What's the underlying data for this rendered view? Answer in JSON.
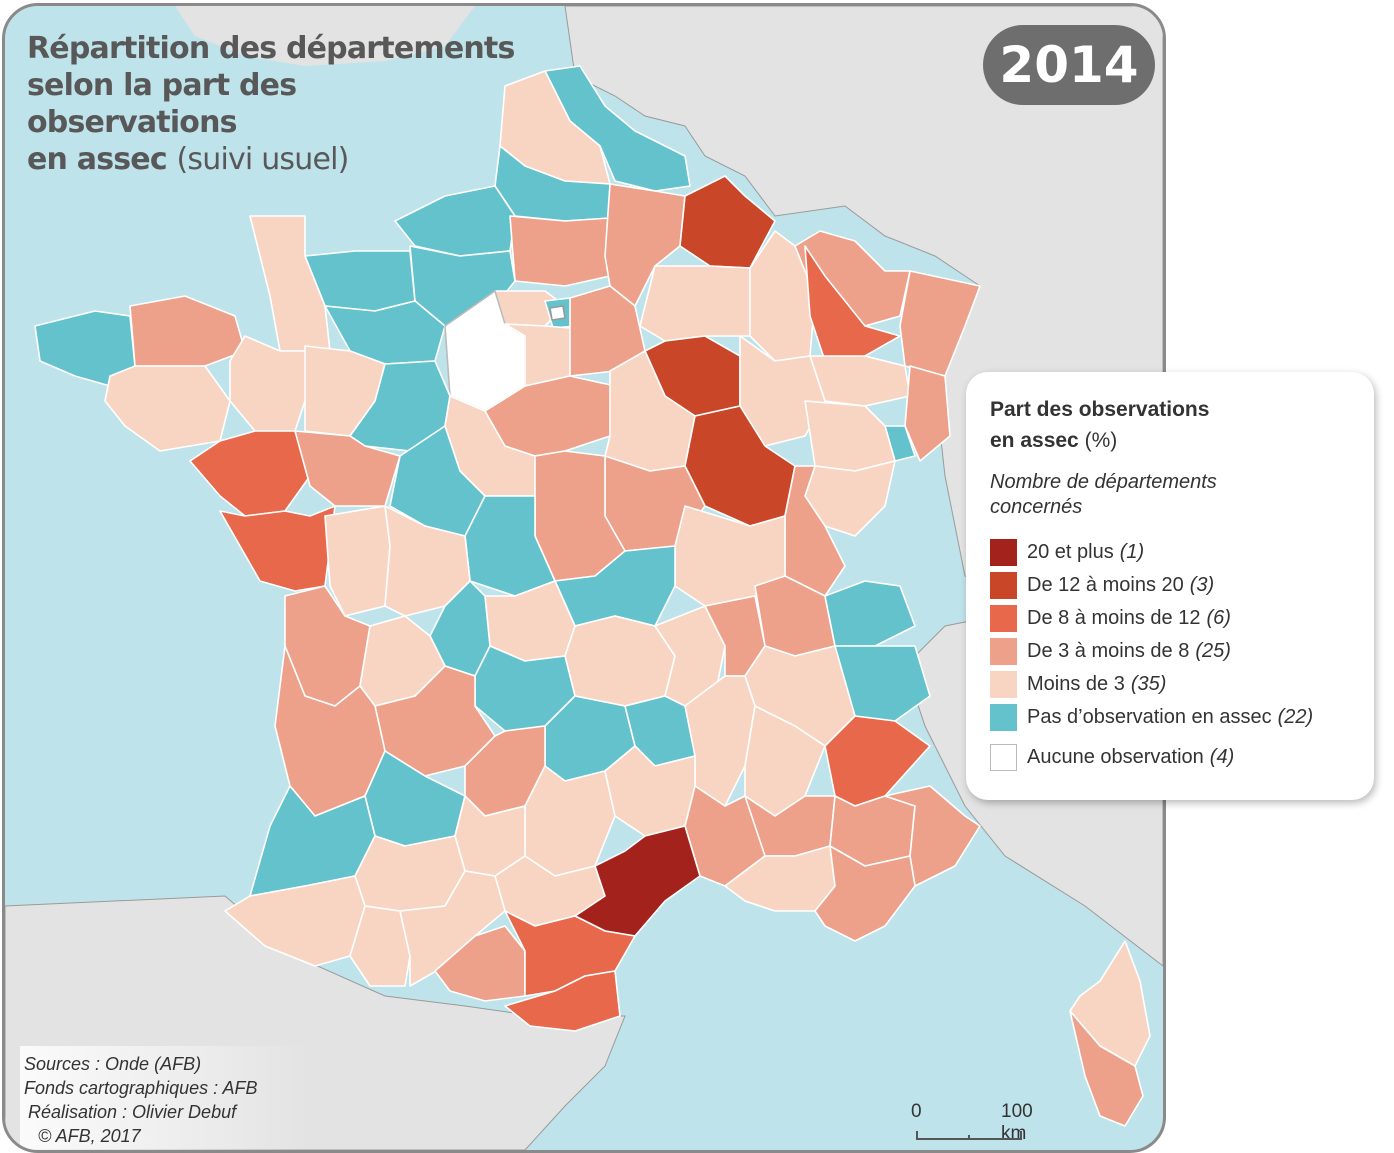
{
  "title": {
    "line1": "Répartition des départements",
    "line2": "selon la part des",
    "line3": "observations",
    "line4_bold": "en assec",
    "line4_light": "(suivi usuel)"
  },
  "year": "2014",
  "legend": {
    "title_bold1": "Part des observations",
    "title_bold2": "en assec",
    "title_unit": "(%)",
    "subtitle1": "Nombre de départements",
    "subtitle2": "concernés",
    "classes": [
      {
        "label": "20 et plus",
        "count": "(1)",
        "color": "#a3231c"
      },
      {
        "label": "De 12 à moins 20",
        "count": "(3)",
        "color": "#c94628"
      },
      {
        "label": "De 8 à moins de 12",
        "count": "(6)",
        "color": "#e7684b"
      },
      {
        "label": "De 3 à moins de 8",
        "count": "(25)",
        "color": "#eda18a"
      },
      {
        "label": "Moins de 3",
        "count": "(35)",
        "color": "#f8d5c2"
      },
      {
        "label": "Pas d’observation en assec",
        "count": "(22)",
        "color": "#63c2cb"
      },
      {
        "label": "Aucune observation",
        "count": "(4)",
        "color": "#ffffff"
      }
    ]
  },
  "sources": {
    "line1": "Sources : Onde (AFB)",
    "line2": "Fonds cartographiques : AFB",
    "line3": "Réalisation : Olivier Debuf",
    "line4": "© AFB, 2017"
  },
  "scale": {
    "zero": "0",
    "distance": "100 km"
  },
  "colors": {
    "sea": "#bfe3ea",
    "neighbors": "#e3e3e3",
    "border": "#ffffff"
  }
}
